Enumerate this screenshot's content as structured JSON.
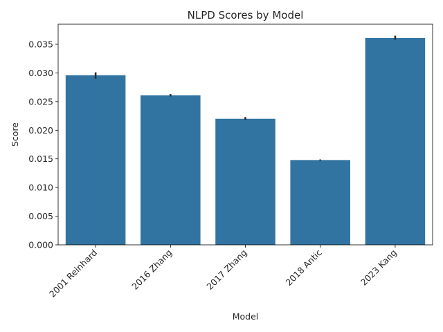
{
  "chart_data": {
    "type": "bar",
    "title": "NLPD Scores by Model",
    "xlabel": "Model",
    "ylabel": "Score",
    "categories": [
      "2001 Reinhard",
      "2016 Zhang",
      "2017 Zhang",
      "2018 Antic",
      "2023 Kang"
    ],
    "values": [
      0.0296,
      0.0261,
      0.022,
      0.0148,
      0.0361
    ],
    "error_low": [
      0.029,
      0.0259,
      0.0218,
      0.0147,
      0.0358
    ],
    "error_high": [
      0.0301,
      0.0263,
      0.0223,
      0.0149,
      0.0365
    ],
    "yticks": [
      0.0,
      0.005,
      0.01,
      0.015,
      0.02,
      0.025,
      0.03,
      0.035
    ],
    "ytick_labels": [
      "0.000",
      "0.005",
      "0.010",
      "0.015",
      "0.020",
      "0.025",
      "0.030",
      "0.035"
    ],
    "ylim": [
      0,
      0.0385
    ],
    "grid": false,
    "bar_color": "#3274a1",
    "error_color": "#2b2b2b"
  }
}
